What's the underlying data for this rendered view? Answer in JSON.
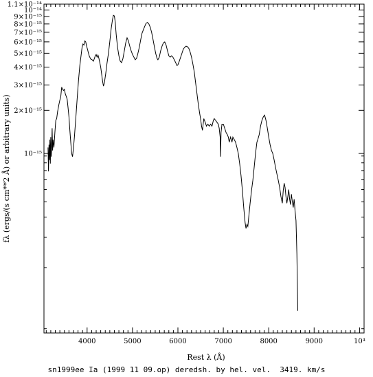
{
  "chart_data": {
    "type": "line",
    "title": "",
    "xlabel": "Rest λ (Å)",
    "ylabel": "fλ (ergs/(s cm**2 Å) or arbitrary units)",
    "xlim": [
      3050,
      10100
    ],
    "ylim": [
      5.6e-17,
      1.1e-14
    ],
    "yscale": "log",
    "grid": false,
    "legend": "none",
    "x_ticks": [
      {
        "value": 4000,
        "label": "4000"
      },
      {
        "value": 5000,
        "label": "5000"
      },
      {
        "value": 6000,
        "label": "6000"
      },
      {
        "value": 7000,
        "label": "7000"
      },
      {
        "value": 8000,
        "label": "8000"
      },
      {
        "value": 9000,
        "label": "9000"
      },
      {
        "value": 10000,
        "label": "10⁴"
      }
    ],
    "y_ticks": [
      {
        "value": 1.1e-14,
        "label": "1.1×10⁻¹⁴"
      },
      {
        "value": 1e-14,
        "label": "10⁻¹⁴"
      },
      {
        "value": 9e-15,
        "label": "9×10⁻¹⁵"
      },
      {
        "value": 8e-15,
        "label": "8×10⁻¹⁵"
      },
      {
        "value": 7e-15,
        "label": "7×10⁻¹⁵"
      },
      {
        "value": 6e-15,
        "label": "6×10⁻¹⁵"
      },
      {
        "value": 5e-15,
        "label": "5×10⁻¹⁵"
      },
      {
        "value": 4e-15,
        "label": "4×10⁻¹⁵"
      },
      {
        "value": 3e-15,
        "label": "3×10⁻¹⁵"
      },
      {
        "value": 2e-15,
        "label": "2×10⁻¹⁵"
      },
      {
        "value": 1e-15,
        "label": "10⁻¹⁵"
      }
    ],
    "series": [
      {
        "points": [
          [
            3140,
            1.1e-15
          ],
          [
            3150,
            7.5e-16
          ],
          [
            3160,
            1.15e-15
          ],
          [
            3170,
            9e-16
          ],
          [
            3180,
            1.25e-15
          ],
          [
            3190,
            8.5e-16
          ],
          [
            3200,
            1.3e-15
          ],
          [
            3210,
            9.5e-16
          ],
          [
            3220,
            1.1e-15
          ],
          [
            3230,
            1.5e-15
          ],
          [
            3240,
            1.05e-15
          ],
          [
            3250,
            1.25e-15
          ],
          [
            3270,
            1.1e-15
          ],
          [
            3290,
            1.4e-15
          ],
          [
            3310,
            1.7e-15
          ],
          [
            3330,
            1.75e-15
          ],
          [
            3350,
            1.95e-15
          ],
          [
            3380,
            2.2e-15
          ],
          [
            3400,
            2.35e-15
          ],
          [
            3420,
            2.5e-15
          ],
          [
            3440,
            2.9e-15
          ],
          [
            3460,
            2.8e-15
          ],
          [
            3480,
            2.75e-15
          ],
          [
            3500,
            2.8e-15
          ],
          [
            3520,
            2.6e-15
          ],
          [
            3540,
            2.5e-15
          ],
          [
            3560,
            2.4e-15
          ],
          [
            3580,
            2.1e-15
          ],
          [
            3600,
            1.8e-15
          ],
          [
            3620,
            1.45e-15
          ],
          [
            3640,
            1.2e-15
          ],
          [
            3660,
            1e-15
          ],
          [
            3680,
            9.5e-16
          ],
          [
            3700,
            1.1e-15
          ],
          [
            3720,
            1.3e-15
          ],
          [
            3750,
            1.75e-15
          ],
          [
            3780,
            2.4e-15
          ],
          [
            3810,
            3.2e-15
          ],
          [
            3840,
            4.1e-15
          ],
          [
            3870,
            4.9e-15
          ],
          [
            3890,
            5.5e-15
          ],
          [
            3910,
            5.8e-15
          ],
          [
            3930,
            5.7e-15
          ],
          [
            3950,
            6.1e-15
          ],
          [
            3970,
            6e-15
          ],
          [
            3990,
            5.6e-15
          ],
          [
            4010,
            5.3e-15
          ],
          [
            4030,
            5e-15
          ],
          [
            4050,
            4.75e-15
          ],
          [
            4080,
            4.55e-15
          ],
          [
            4110,
            4.5e-15
          ],
          [
            4140,
            4.4e-15
          ],
          [
            4160,
            4.6e-15
          ],
          [
            4180,
            4.8e-15
          ],
          [
            4200,
            4.9e-15
          ],
          [
            4220,
            4.7e-15
          ],
          [
            4240,
            4.85e-15
          ],
          [
            4260,
            4.6e-15
          ],
          [
            4280,
            4.3e-15
          ],
          [
            4300,
            4e-15
          ],
          [
            4320,
            3.6e-15
          ],
          [
            4340,
            3.2e-15
          ],
          [
            4360,
            2.95e-15
          ],
          [
            4380,
            3.1e-15
          ],
          [
            4410,
            3.6e-15
          ],
          [
            4440,
            4.3e-15
          ],
          [
            4470,
            5e-15
          ],
          [
            4500,
            6e-15
          ],
          [
            4530,
            7.4e-15
          ],
          [
            4560,
            8.6e-15
          ],
          [
            4580,
            9.2e-15
          ],
          [
            4600,
            9.1e-15
          ],
          [
            4620,
            8.2e-15
          ],
          [
            4640,
            6.8e-15
          ],
          [
            4670,
            5.5e-15
          ],
          [
            4700,
            4.8e-15
          ],
          [
            4730,
            4.4e-15
          ],
          [
            4760,
            4.3e-15
          ],
          [
            4790,
            4.6e-15
          ],
          [
            4820,
            5.2e-15
          ],
          [
            4850,
            5.9e-15
          ],
          [
            4880,
            6.4e-15
          ],
          [
            4910,
            6.1e-15
          ],
          [
            4940,
            5.6e-15
          ],
          [
            4970,
            5.2e-15
          ],
          [
            5000,
            4.9e-15
          ],
          [
            5030,
            4.7e-15
          ],
          [
            5060,
            4.5e-15
          ],
          [
            5090,
            4.6e-15
          ],
          [
            5120,
            5e-15
          ],
          [
            5150,
            5.5e-15
          ],
          [
            5180,
            6.2e-15
          ],
          [
            5210,
            6.9e-15
          ],
          [
            5240,
            7.3e-15
          ],
          [
            5270,
            7.7e-15
          ],
          [
            5300,
            8.1e-15
          ],
          [
            5330,
            8.2e-15
          ],
          [
            5360,
            8e-15
          ],
          [
            5390,
            7.6e-15
          ],
          [
            5420,
            7e-15
          ],
          [
            5450,
            6.3e-15
          ],
          [
            5480,
            5.6e-15
          ],
          [
            5510,
            5e-15
          ],
          [
            5540,
            4.6e-15
          ],
          [
            5560,
            4.5e-15
          ],
          [
            5590,
            4.7e-15
          ],
          [
            5620,
            5.2e-15
          ],
          [
            5650,
            5.6e-15
          ],
          [
            5680,
            5.9e-15
          ],
          [
            5710,
            6e-15
          ],
          [
            5740,
            5.7e-15
          ],
          [
            5770,
            5.2e-15
          ],
          [
            5800,
            4.8e-15
          ],
          [
            5830,
            4.7e-15
          ],
          [
            5860,
            4.8e-15
          ],
          [
            5890,
            4.7e-15
          ],
          [
            5920,
            4.5e-15
          ],
          [
            5950,
            4.3e-15
          ],
          [
            5980,
            4.1e-15
          ],
          [
            6000,
            4.15e-15
          ],
          [
            6030,
            4.4e-15
          ],
          [
            6060,
            4.7e-15
          ],
          [
            6090,
            5e-15
          ],
          [
            6120,
            5.35e-15
          ],
          [
            6150,
            5.5e-15
          ],
          [
            6180,
            5.6e-15
          ],
          [
            6210,
            5.55e-15
          ],
          [
            6240,
            5.4e-15
          ],
          [
            6270,
            5.1e-15
          ],
          [
            6300,
            4.7e-15
          ],
          [
            6330,
            4.2e-15
          ],
          [
            6360,
            3.7e-15
          ],
          [
            6390,
            3.1e-15
          ],
          [
            6420,
            2.6e-15
          ],
          [
            6450,
            2.2e-15
          ],
          [
            6480,
            1.9e-15
          ],
          [
            6500,
            1.75e-15
          ],
          [
            6520,
            1.55e-15
          ],
          [
            6540,
            1.45e-15
          ],
          [
            6570,
            1.75e-15
          ],
          [
            6600,
            1.65e-15
          ],
          [
            6630,
            1.55e-15
          ],
          [
            6660,
            1.6e-15
          ],
          [
            6690,
            1.55e-15
          ],
          [
            6720,
            1.6e-15
          ],
          [
            6750,
            1.55e-15
          ],
          [
            6780,
            1.7e-15
          ],
          [
            6800,
            1.75e-15
          ],
          [
            6830,
            1.7e-15
          ],
          [
            6860,
            1.65e-15
          ],
          [
            6890,
            1.6e-15
          ],
          [
            6910,
            1.5e-15
          ],
          [
            6930,
            1.3e-15
          ],
          [
            6940,
            9.5e-16
          ],
          [
            6950,
            1.4e-15
          ],
          [
            6970,
            1.6e-15
          ],
          [
            7000,
            1.6e-15
          ],
          [
            7030,
            1.5e-15
          ],
          [
            7060,
            1.4e-15
          ],
          [
            7090,
            1.35e-15
          ],
          [
            7110,
            1.3e-15
          ],
          [
            7130,
            1.2e-15
          ],
          [
            7160,
            1.3e-15
          ],
          [
            7190,
            1.2e-15
          ],
          [
            7210,
            1.3e-15
          ],
          [
            7240,
            1.25e-15
          ],
          [
            7270,
            1.2e-15
          ],
          [
            7300,
            1.1e-15
          ],
          [
            7330,
            1e-15
          ],
          [
            7360,
            8.5e-16
          ],
          [
            7390,
            7e-16
          ],
          [
            7420,
            5.5e-16
          ],
          [
            7450,
            4.2e-16
          ],
          [
            7480,
            3.3e-16
          ],
          [
            7500,
            3e-16
          ],
          [
            7520,
            3.2e-16
          ],
          [
            7540,
            3.1e-16
          ],
          [
            7560,
            3.6e-16
          ],
          [
            7590,
            4.5e-16
          ],
          [
            7620,
            5.5e-16
          ],
          [
            7650,
            6.5e-16
          ],
          [
            7680,
            8e-16
          ],
          [
            7710,
            1e-15
          ],
          [
            7740,
            1.2e-15
          ],
          [
            7760,
            1.25e-15
          ],
          [
            7790,
            1.35e-15
          ],
          [
            7820,
            1.55e-15
          ],
          [
            7850,
            1.7e-15
          ],
          [
            7880,
            1.8e-15
          ],
          [
            7910,
            1.85e-15
          ],
          [
            7940,
            1.7e-15
          ],
          [
            7970,
            1.5e-15
          ],
          [
            8000,
            1.3e-15
          ],
          [
            8030,
            1.15e-15
          ],
          [
            8060,
            1.05e-15
          ],
          [
            8090,
            1e-15
          ],
          [
            8120,
            9e-16
          ],
          [
            8150,
            8e-16
          ],
          [
            8180,
            7.2e-16
          ],
          [
            8210,
            6.5e-16
          ],
          [
            8240,
            5.8e-16
          ],
          [
            8270,
            5e-16
          ],
          [
            8300,
            4.5e-16
          ],
          [
            8320,
            5.5e-16
          ],
          [
            8340,
            6.2e-16
          ],
          [
            8360,
            5.8e-16
          ],
          [
            8380,
            5e-16
          ],
          [
            8400,
            4.5e-16
          ],
          [
            8420,
            5e-16
          ],
          [
            8440,
            5.6e-16
          ],
          [
            8460,
            4.8e-16
          ],
          [
            8480,
            4.4e-16
          ],
          [
            8500,
            5.2e-16
          ],
          [
            8520,
            4.6e-16
          ],
          [
            8540,
            4.2e-16
          ],
          [
            8560,
            4.8e-16
          ],
          [
            8580,
            4e-16
          ],
          [
            8600,
            3.4e-16
          ],
          [
            8620,
            2e-16
          ],
          [
            8640,
            8e-17
          ]
        ]
      }
    ],
    "caption": "sn1999ee Ia (1999 11 09.op) deredsh. by hel. vel.  3419. km/s"
  }
}
